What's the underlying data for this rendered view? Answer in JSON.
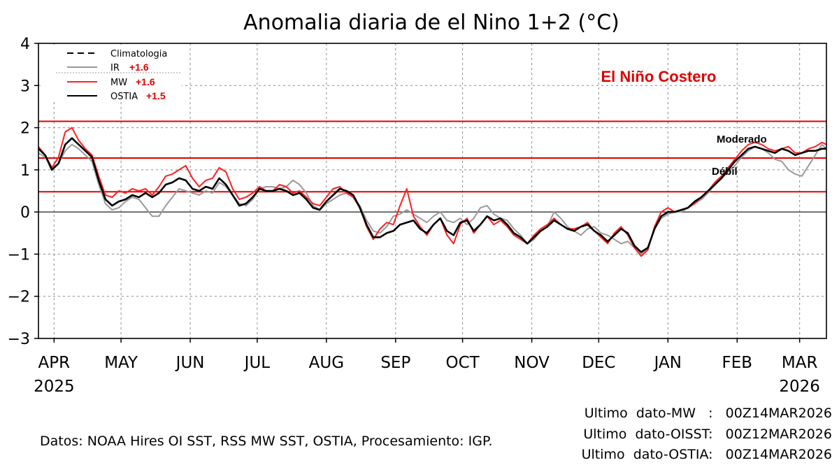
{
  "chart_data": {
    "type": "line",
    "title": "Anomalia diaria de el Nino 1+2 (°C)",
    "xlabel": "",
    "ylabel": "",
    "ylim": [
      -3,
      4
    ],
    "yticks": [
      "−3",
      "−2",
      "−1",
      "0",
      "1",
      "2",
      "3",
      "4"
    ],
    "ytick_values": [
      -3,
      -2,
      -1,
      0,
      1,
      2,
      3,
      4
    ],
    "x_range_days": [
      0,
      353
    ],
    "x_start_date": "2025-03-25",
    "months": [
      {
        "label": "APR",
        "day": 7,
        "year": "2025"
      },
      {
        "label": "MAY",
        "day": 37,
        "year": ""
      },
      {
        "label": "JUN",
        "day": 68,
        "year": ""
      },
      {
        "label": "JUL",
        "day": 98,
        "year": ""
      },
      {
        "label": "AUG",
        "day": 129,
        "year": ""
      },
      {
        "label": "SEP",
        "day": 160,
        "year": ""
      },
      {
        "label": "OCT",
        "day": 190,
        "year": ""
      },
      {
        "label": "NOV",
        "day": 221,
        "year": ""
      },
      {
        "label": "DEC",
        "day": 251,
        "year": ""
      },
      {
        "label": "JAN",
        "day": 282,
        "year": ""
      },
      {
        "label": "FEB",
        "day": 313,
        "year": ""
      },
      {
        "label": "MAR",
        "day": 341,
        "year": "2026"
      }
    ],
    "thresholds": [
      {
        "value": 2.15,
        "label": ""
      },
      {
        "value": 1.28,
        "label": "Moderado"
      },
      {
        "value": 0.48,
        "label": "Débil"
      }
    ],
    "zero_line": 0,
    "annotation": "El Niño Costero",
    "series": [
      {
        "name": "Climatologia",
        "color": "#000000",
        "style": "dashed",
        "legend_value": "",
        "x": [],
        "y": []
      },
      {
        "name": "IR",
        "color": "#999999",
        "style": "solid",
        "legend_value": "+1.6",
        "x": [
          0,
          3,
          6,
          9,
          12,
          15,
          18,
          21,
          24,
          27,
          30,
          33,
          36,
          39,
          42,
          45,
          48,
          51,
          54,
          57,
          60,
          63,
          66,
          69,
          72,
          75,
          78,
          81,
          84,
          87,
          90,
          93,
          96,
          99,
          102,
          105,
          108,
          111,
          114,
          117,
          120,
          123,
          126,
          129,
          132,
          135,
          138,
          141,
          144,
          147,
          150,
          153,
          156,
          159,
          162,
          165,
          168,
          171,
          174,
          177,
          180,
          183,
          186,
          189,
          192,
          195,
          198,
          201,
          204,
          207,
          210,
          213,
          216,
          219,
          222,
          225,
          228,
          231,
          234,
          237,
          240,
          243,
          246,
          249,
          252,
          255,
          258,
          261,
          264,
          267,
          270,
          273,
          276,
          279,
          282,
          285,
          288,
          291,
          294,
          297,
          300,
          303,
          306,
          309,
          312,
          315,
          318,
          321,
          324,
          327,
          330,
          333,
          336,
          339,
          342,
          345,
          348,
          351,
          353
        ],
        "y": [
          1.4,
          1.3,
          1.05,
          1.15,
          1.45,
          1.6,
          1.5,
          1.35,
          1.2,
          0.65,
          0.2,
          0.05,
          0.1,
          0.25,
          0.35,
          0.3,
          0.1,
          -0.1,
          -0.1,
          0.15,
          0.35,
          0.55,
          0.5,
          0.45,
          0.4,
          0.5,
          0.45,
          0.7,
          0.6,
          0.4,
          0.2,
          0.15,
          0.3,
          0.55,
          0.6,
          0.6,
          0.55,
          0.6,
          0.75,
          0.65,
          0.45,
          0.15,
          0.05,
          0.2,
          0.3,
          0.4,
          0.45,
          0.35,
          0.15,
          -0.2,
          -0.45,
          -0.5,
          -0.35,
          -0.1,
          -0.05,
          0.05,
          -0.05,
          -0.15,
          -0.25,
          -0.1,
          0.0,
          -0.2,
          -0.25,
          -0.15,
          -0.3,
          -0.15,
          0.1,
          0.15,
          -0.05,
          -0.15,
          -0.2,
          -0.4,
          -0.55,
          -0.75,
          -0.65,
          -0.45,
          -0.35,
          0.0,
          -0.15,
          -0.35,
          -0.45,
          -0.55,
          -0.4,
          -0.35,
          -0.5,
          -0.55,
          -0.65,
          -0.75,
          -0.7,
          -0.85,
          -1.0,
          -0.85,
          -0.4,
          -0.15,
          -0.05,
          0.0,
          0.0,
          0.1,
          0.2,
          0.3,
          0.45,
          0.65,
          0.8,
          0.95,
          1.1,
          1.3,
          1.45,
          1.55,
          1.5,
          1.4,
          1.25,
          1.2,
          1.0,
          0.9,
          0.85,
          1.1,
          1.35,
          1.6,
          1.5
        ]
      },
      {
        "name": "MW",
        "color": "#ff2020",
        "style": "solid",
        "legend_value": "+1.6",
        "x": [
          0,
          3,
          6,
          9,
          12,
          15,
          18,
          21,
          24,
          27,
          30,
          33,
          36,
          39,
          42,
          45,
          48,
          51,
          54,
          57,
          60,
          63,
          66,
          69,
          72,
          75,
          78,
          81,
          84,
          87,
          90,
          93,
          96,
          99,
          102,
          105,
          108,
          111,
          114,
          117,
          120,
          123,
          126,
          129,
          132,
          135,
          138,
          141,
          144,
          147,
          150,
          153,
          156,
          159,
          162,
          165,
          168,
          171,
          174,
          177,
          180,
          183,
          186,
          189,
          192,
          195,
          198,
          201,
          204,
          207,
          210,
          213,
          216,
          219,
          222,
          225,
          228,
          231,
          234,
          237,
          240,
          243,
          246,
          249,
          252,
          255,
          258,
          261,
          264,
          267,
          270,
          273,
          276,
          279,
          282,
          285,
          288,
          291,
          294,
          297,
          300,
          303,
          306,
          309,
          312,
          315,
          318,
          321,
          324,
          327,
          330,
          333,
          336,
          339,
          342,
          345,
          348,
          351,
          353
        ],
        "y": [
          1.55,
          1.35,
          1.05,
          1.3,
          1.9,
          2.0,
          1.7,
          1.5,
          1.35,
          0.85,
          0.4,
          0.35,
          0.5,
          0.45,
          0.55,
          0.5,
          0.55,
          0.4,
          0.6,
          0.85,
          0.9,
          1.0,
          1.1,
          0.8,
          0.6,
          0.75,
          0.8,
          1.05,
          0.95,
          0.55,
          0.3,
          0.35,
          0.45,
          0.6,
          0.5,
          0.5,
          0.65,
          0.6,
          0.45,
          0.5,
          0.35,
          0.2,
          0.15,
          0.35,
          0.55,
          0.6,
          0.45,
          0.35,
          0.1,
          -0.35,
          -0.65,
          -0.4,
          -0.25,
          -0.3,
          0.15,
          0.55,
          -0.1,
          -0.35,
          -0.55,
          -0.3,
          -0.15,
          -0.55,
          -0.75,
          -0.3,
          -0.15,
          -0.5,
          -0.3,
          -0.1,
          -0.3,
          -0.2,
          -0.35,
          -0.55,
          -0.65,
          -0.75,
          -0.55,
          -0.4,
          -0.3,
          -0.15,
          -0.3,
          -0.4,
          -0.4,
          -0.35,
          -0.25,
          -0.45,
          -0.6,
          -0.75,
          -0.5,
          -0.35,
          -0.55,
          -0.85,
          -1.05,
          -0.9,
          -0.35,
          0.0,
          0.1,
          0.0,
          0.05,
          0.1,
          0.2,
          0.35,
          0.5,
          0.7,
          0.85,
          1.05,
          1.25,
          1.45,
          1.6,
          1.65,
          1.6,
          1.5,
          1.45,
          1.5,
          1.55,
          1.4,
          1.4,
          1.5,
          1.55,
          1.65,
          1.6
        ]
      },
      {
        "name": "OSTIA",
        "color": "#000000",
        "style": "solid",
        "legend_value": "+1.5",
        "x": [
          0,
          3,
          6,
          9,
          12,
          15,
          18,
          21,
          24,
          27,
          30,
          33,
          36,
          39,
          42,
          45,
          48,
          51,
          54,
          57,
          60,
          63,
          66,
          69,
          72,
          75,
          78,
          81,
          84,
          87,
          90,
          93,
          96,
          99,
          102,
          105,
          108,
          111,
          114,
          117,
          120,
          123,
          126,
          129,
          132,
          135,
          138,
          141,
          144,
          147,
          150,
          153,
          156,
          159,
          162,
          165,
          168,
          171,
          174,
          177,
          180,
          183,
          186,
          189,
          192,
          195,
          198,
          201,
          204,
          207,
          210,
          213,
          216,
          219,
          222,
          225,
          228,
          231,
          234,
          237,
          240,
          243,
          246,
          249,
          252,
          255,
          258,
          261,
          264,
          267,
          270,
          273,
          276,
          279,
          282,
          285,
          288,
          291,
          294,
          297,
          300,
          303,
          306,
          309,
          312,
          315,
          318,
          321,
          324,
          327,
          330,
          333,
          336,
          339,
          342,
          345,
          348,
          351,
          353
        ],
        "y": [
          1.5,
          1.35,
          1.0,
          1.15,
          1.6,
          1.75,
          1.6,
          1.45,
          1.3,
          0.75,
          0.3,
          0.15,
          0.25,
          0.3,
          0.4,
          0.35,
          0.45,
          0.35,
          0.45,
          0.65,
          0.7,
          0.8,
          0.75,
          0.55,
          0.5,
          0.6,
          0.55,
          0.8,
          0.65,
          0.4,
          0.15,
          0.2,
          0.35,
          0.55,
          0.5,
          0.5,
          0.55,
          0.5,
          0.4,
          0.45,
          0.3,
          0.1,
          0.05,
          0.25,
          0.4,
          0.55,
          0.5,
          0.4,
          0.1,
          -0.3,
          -0.6,
          -0.6,
          -0.5,
          -0.45,
          -0.3,
          -0.25,
          -0.2,
          -0.4,
          -0.5,
          -0.3,
          -0.15,
          -0.45,
          -0.55,
          -0.25,
          -0.2,
          -0.45,
          -0.3,
          -0.1,
          -0.2,
          -0.15,
          -0.3,
          -0.5,
          -0.6,
          -0.75,
          -0.6,
          -0.45,
          -0.35,
          -0.2,
          -0.3,
          -0.4,
          -0.45,
          -0.35,
          -0.3,
          -0.45,
          -0.55,
          -0.7,
          -0.55,
          -0.4,
          -0.5,
          -0.8,
          -0.95,
          -0.85,
          -0.4,
          -0.1,
          0.0,
          0.0,
          0.05,
          0.1,
          0.25,
          0.35,
          0.5,
          0.65,
          0.8,
          1.0,
          1.2,
          1.35,
          1.5,
          1.55,
          1.5,
          1.45,
          1.4,
          1.5,
          1.45,
          1.35,
          1.4,
          1.45,
          1.45,
          1.5,
          1.5
        ]
      }
    ]
  },
  "footer": {
    "datos": "Datos: NOAA Hires OI SST, RSS MW SST, OSTIA, Procesamiento: IGP.",
    "ultimo_mw": "Ultimo  dato-MW   :   00Z14MAR2026",
    "ultimo_oisst": "Ultimo  dato-OISST:   00Z12MAR2026",
    "ultimo_ostia": "Ultimo  dato-OSTIA:   00Z14MAR2026"
  }
}
